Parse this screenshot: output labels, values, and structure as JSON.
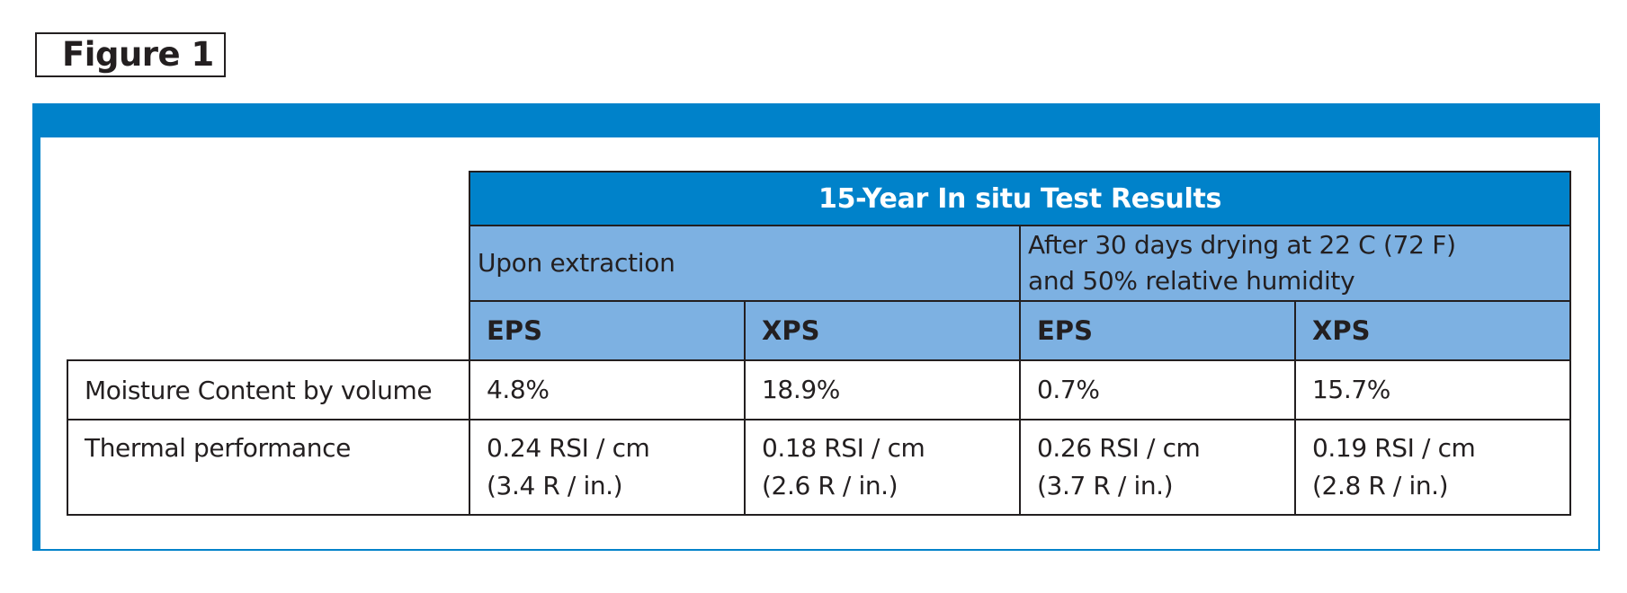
{
  "figure_label": "Figure 1",
  "table": {
    "title": "15-Year In situ Test Results",
    "groups": [
      {
        "lines": [
          "Upon extraction"
        ]
      },
      {
        "lines": [
          "After 30 days drying at 22 C (72 F)",
          "and 50% relative humidity"
        ]
      }
    ],
    "materials": [
      "EPS",
      "XPS",
      "EPS",
      "XPS"
    ],
    "rows": [
      {
        "label": "Moisture Content by volume",
        "cells": [
          [
            "4.8%"
          ],
          [
            "18.9%"
          ],
          [
            "0.7%"
          ],
          [
            "15.7%"
          ]
        ]
      },
      {
        "label": "Thermal performance",
        "cells": [
          [
            "0.24 RSI / cm",
            "(3.4 R / in.)"
          ],
          [
            "0.18 RSI / cm",
            "(2.6 R / in.)"
          ],
          [
            "0.26 RSI / cm",
            "(3.7 R / in.)"
          ],
          [
            "0.19 RSI / cm",
            "(2.8 R / in.)"
          ]
        ]
      }
    ]
  },
  "colors": {
    "accent_blue": "#0082ca",
    "light_blue": "#7db1e2",
    "text": "#231f20"
  }
}
